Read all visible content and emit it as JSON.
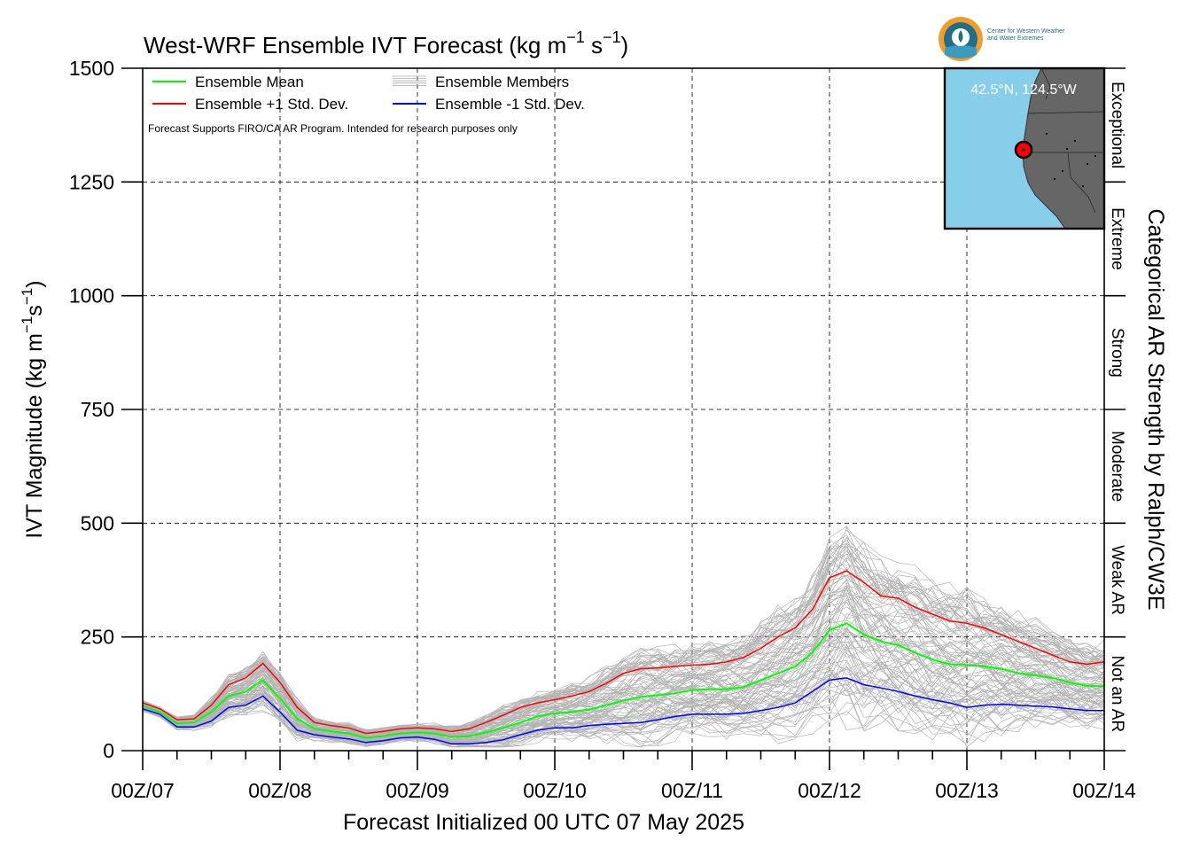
{
  "logo": {
    "line1": "Center for Western Weather",
    "line2": "and Water Extremes"
  },
  "inset_map": {
    "location_label": "42.5°N, 124.5°W",
    "ocean_color": "#87ceeb",
    "land_color": "#666666",
    "marker_color": "#ff0000"
  },
  "chart_data": {
    "type": "line",
    "title": "West-WRF Ensemble IVT Forecast (kg m$^{-1}$ s$^{-1}$)",
    "title_text": "West-WRF Ensemble IVT Forecast (kg m",
    "title_sup1": "−1",
    "title_mid": " s",
    "title_sup2": "−1",
    "title_end": ")",
    "xlabel": "Forecast Initialized 00 UTC 07 May 2025",
    "ylabel_text": "IVT Magnitude (kg m",
    "ylabel_sup1": "−1",
    "ylabel_mid": "s",
    "ylabel_sup2": "−1",
    "ylabel_end": ")",
    "right_label": "Categorical AR Strength by Ralph/CW3E",
    "note": "Forecast Supports FIRO/CA AR Program. Intended for research purposes only",
    "xlim": [
      0,
      168
    ],
    "ylim": [
      0,
      1500
    ],
    "x_unit": "forecast hour",
    "x_ticks": [
      0,
      24,
      48,
      72,
      96,
      120,
      144,
      168
    ],
    "x_tick_labels": [
      "00Z/07",
      "00Z/08",
      "00Z/09",
      "00Z/10",
      "00Z/11",
      "00Z/12",
      "00Z/13",
      "00Z/14"
    ],
    "y_ticks": [
      0,
      250,
      500,
      750,
      1000,
      1250,
      1500
    ],
    "y_tick_labels": [
      "0",
      "250",
      "500",
      "750",
      "1000",
      "1250",
      "1500"
    ],
    "grid": true,
    "legend_position": "top-left",
    "legend": [
      {
        "label": "Ensemble Mean",
        "color": "#00ff00"
      },
      {
        "label": "Ensemble Members",
        "color": "#aaaaaa"
      },
      {
        "label": "Ensemble +1 Std. Dev.",
        "color": "#ff0000"
      },
      {
        "label": "Ensemble -1 Std. Dev.",
        "color": "#0000ff"
      }
    ],
    "categories": [
      {
        "label": "Not an AR",
        "from": 0,
        "to": 250
      },
      {
        "label": "Weak AR",
        "from": 250,
        "to": 500
      },
      {
        "label": "Moderate",
        "from": 500,
        "to": 750
      },
      {
        "label": "Strong",
        "from": 750,
        "to": 1000
      },
      {
        "label": "Extreme",
        "from": 1000,
        "to": 1250
      },
      {
        "label": "Exceptional",
        "from": 1250,
        "to": 1500
      }
    ],
    "x": [
      0,
      3,
      6,
      9,
      12,
      15,
      18,
      21,
      24,
      27,
      30,
      33,
      36,
      39,
      42,
      45,
      48,
      51,
      54,
      57,
      60,
      63,
      66,
      69,
      72,
      75,
      78,
      81,
      84,
      87,
      90,
      93,
      96,
      99,
      102,
      105,
      108,
      111,
      114,
      117,
      120,
      123,
      126,
      129,
      132,
      135,
      138,
      141,
      144,
      147,
      150,
      153,
      156,
      159,
      162,
      165,
      168
    ],
    "series": [
      {
        "name": "Ensemble Mean",
        "color": "#00ff00",
        "values": [
          98,
          85,
          60,
          62,
          85,
          120,
          130,
          155,
          115,
          70,
          48,
          42,
          38,
          28,
          32,
          38,
          40,
          38,
          30,
          32,
          40,
          50,
          62,
          75,
          82,
          85,
          90,
          100,
          110,
          118,
          122,
          126,
          133,
          135,
          135,
          140,
          155,
          170,
          185,
          215,
          265,
          280,
          255,
          240,
          232,
          215,
          200,
          190,
          188,
          185,
          180,
          170,
          165,
          160,
          150,
          142,
          142
        ]
      },
      {
        "name": "Ensemble +1 Std. Dev.",
        "color": "#ff0000",
        "values": [
          105,
          92,
          68,
          70,
          100,
          145,
          160,
          192,
          150,
          95,
          62,
          55,
          50,
          38,
          42,
          48,
          50,
          48,
          42,
          48,
          62,
          78,
          95,
          105,
          112,
          120,
          130,
          148,
          170,
          180,
          182,
          185,
          188,
          190,
          195,
          205,
          225,
          250,
          270,
          310,
          380,
          395,
          370,
          340,
          335,
          315,
          300,
          285,
          280,
          270,
          255,
          240,
          225,
          210,
          195,
          190,
          195
        ]
      },
      {
        "name": "Ensemble -1 Std. Dev.",
        "color": "#0000ff",
        "values": [
          92,
          80,
          52,
          52,
          65,
          95,
          100,
          120,
          85,
          45,
          35,
          30,
          26,
          18,
          22,
          28,
          30,
          25,
          15,
          15,
          18,
          24,
          35,
          45,
          50,
          50,
          55,
          58,
          60,
          62,
          68,
          75,
          80,
          80,
          80,
          82,
          88,
          95,
          105,
          130,
          155,
          160,
          145,
          138,
          130,
          120,
          112,
          105,
          95,
          100,
          102,
          100,
          98,
          96,
          92,
          88,
          88
        ]
      }
    ],
    "member_count": 100
  }
}
